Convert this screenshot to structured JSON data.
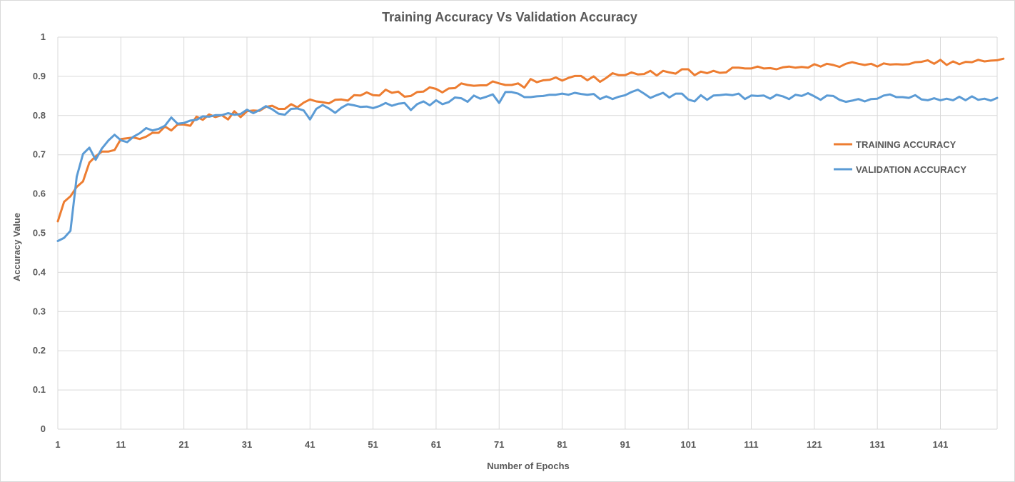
{
  "chart_data": {
    "type": "line",
    "title": "Training Accuracy Vs Validation Accuracy",
    "xlabel": "Number of Epochs",
    "ylabel": "Accuracy Value",
    "ylim": [
      0,
      1
    ],
    "yticks": [
      "0",
      "0.1",
      "0.2",
      "0.3",
      "0.4",
      "0.5",
      "0.6",
      "0.7",
      "0.8",
      "0.9",
      "1"
    ],
    "xtick_labels": [
      "1",
      "11",
      "21",
      "31",
      "41",
      "51",
      "61",
      "71",
      "81",
      "91",
      "101",
      "111",
      "121",
      "131",
      "141"
    ],
    "x_start": 1,
    "x_end": 150,
    "grid": "vertical and horizontal",
    "legend_position": "right",
    "series": [
      {
        "name": "TRAINING ACCURACY",
        "color": "#ED7D31",
        "values": [
          0.53,
          0.58,
          0.594,
          0.618,
          0.632,
          0.68,
          0.696,
          0.708,
          0.708,
          0.712,
          0.74,
          0.742,
          0.744,
          0.74,
          0.746,
          0.756,
          0.756,
          0.772,
          0.762,
          0.777,
          0.777,
          0.774,
          0.797,
          0.789,
          0.803,
          0.796,
          0.801,
          0.79,
          0.811,
          0.796,
          0.811,
          0.813,
          0.812,
          0.822,
          0.825,
          0.817,
          0.817,
          0.829,
          0.821,
          0.833,
          0.841,
          0.836,
          0.834,
          0.831,
          0.84,
          0.841,
          0.838,
          0.852,
          0.851,
          0.859,
          0.852,
          0.851,
          0.866,
          0.858,
          0.861,
          0.848,
          0.85,
          0.86,
          0.861,
          0.872,
          0.868,
          0.859,
          0.869,
          0.87,
          0.882,
          0.878,
          0.876,
          0.877,
          0.877,
          0.887,
          0.882,
          0.878,
          0.878,
          0.882,
          0.871,
          0.893,
          0.885,
          0.89,
          0.891,
          0.897,
          0.889,
          0.896,
          0.901,
          0.901,
          0.89,
          0.9,
          0.886,
          0.896,
          0.908,
          0.903,
          0.903,
          0.91,
          0.905,
          0.906,
          0.914,
          0.902,
          0.914,
          0.91,
          0.907,
          0.918,
          0.918,
          0.903,
          0.912,
          0.908,
          0.914,
          0.909,
          0.91,
          0.922,
          0.922,
          0.92,
          0.92,
          0.925,
          0.92,
          0.921,
          0.918,
          0.923,
          0.925,
          0.922,
          0.924,
          0.922,
          0.931,
          0.925,
          0.932,
          0.929,
          0.924,
          0.932,
          0.936,
          0.932,
          0.929,
          0.932,
          0.925,
          0.933,
          0.93,
          0.931,
          0.93,
          0.931,
          0.936,
          0.937,
          0.941,
          0.932,
          0.942,
          0.929,
          0.938,
          0.931,
          0.937,
          0.936,
          0.942,
          0.938,
          0.94,
          0.941,
          0.945
        ]
      },
      {
        "name": "VALIDATION ACCURACY",
        "color": "#5B9BD5",
        "values": [
          0.48,
          0.488,
          0.506,
          0.644,
          0.702,
          0.718,
          0.687,
          0.716,
          0.736,
          0.751,
          0.737,
          0.732,
          0.746,
          0.755,
          0.768,
          0.762,
          0.766,
          0.774,
          0.795,
          0.779,
          0.781,
          0.787,
          0.789,
          0.798,
          0.797,
          0.801,
          0.801,
          0.806,
          0.802,
          0.804,
          0.815,
          0.806,
          0.814,
          0.824,
          0.816,
          0.805,
          0.802,
          0.817,
          0.818,
          0.813,
          0.79,
          0.817,
          0.827,
          0.818,
          0.807,
          0.82,
          0.829,
          0.826,
          0.822,
          0.823,
          0.819,
          0.824,
          0.832,
          0.825,
          0.83,
          0.832,
          0.814,
          0.829,
          0.836,
          0.826,
          0.839,
          0.829,
          0.834,
          0.846,
          0.844,
          0.835,
          0.851,
          0.843,
          0.848,
          0.854,
          0.832,
          0.86,
          0.86,
          0.856,
          0.847,
          0.847,
          0.849,
          0.85,
          0.853,
          0.853,
          0.856,
          0.853,
          0.858,
          0.855,
          0.853,
          0.855,
          0.842,
          0.849,
          0.842,
          0.848,
          0.852,
          0.86,
          0.866,
          0.856,
          0.845,
          0.852,
          0.858,
          0.846,
          0.856,
          0.856,
          0.841,
          0.836,
          0.852,
          0.84,
          0.851,
          0.852,
          0.854,
          0.852,
          0.856,
          0.842,
          0.851,
          0.85,
          0.851,
          0.843,
          0.853,
          0.849,
          0.842,
          0.853,
          0.85,
          0.857,
          0.849,
          0.84,
          0.851,
          0.85,
          0.84,
          0.835,
          0.838,
          0.842,
          0.836,
          0.842,
          0.843,
          0.851,
          0.854,
          0.847,
          0.847,
          0.845,
          0.852,
          0.841,
          0.839,
          0.844,
          0.839,
          0.843,
          0.839,
          0.848,
          0.839,
          0.849,
          0.84,
          0.843,
          0.838,
          0.845
        ]
      }
    ]
  }
}
